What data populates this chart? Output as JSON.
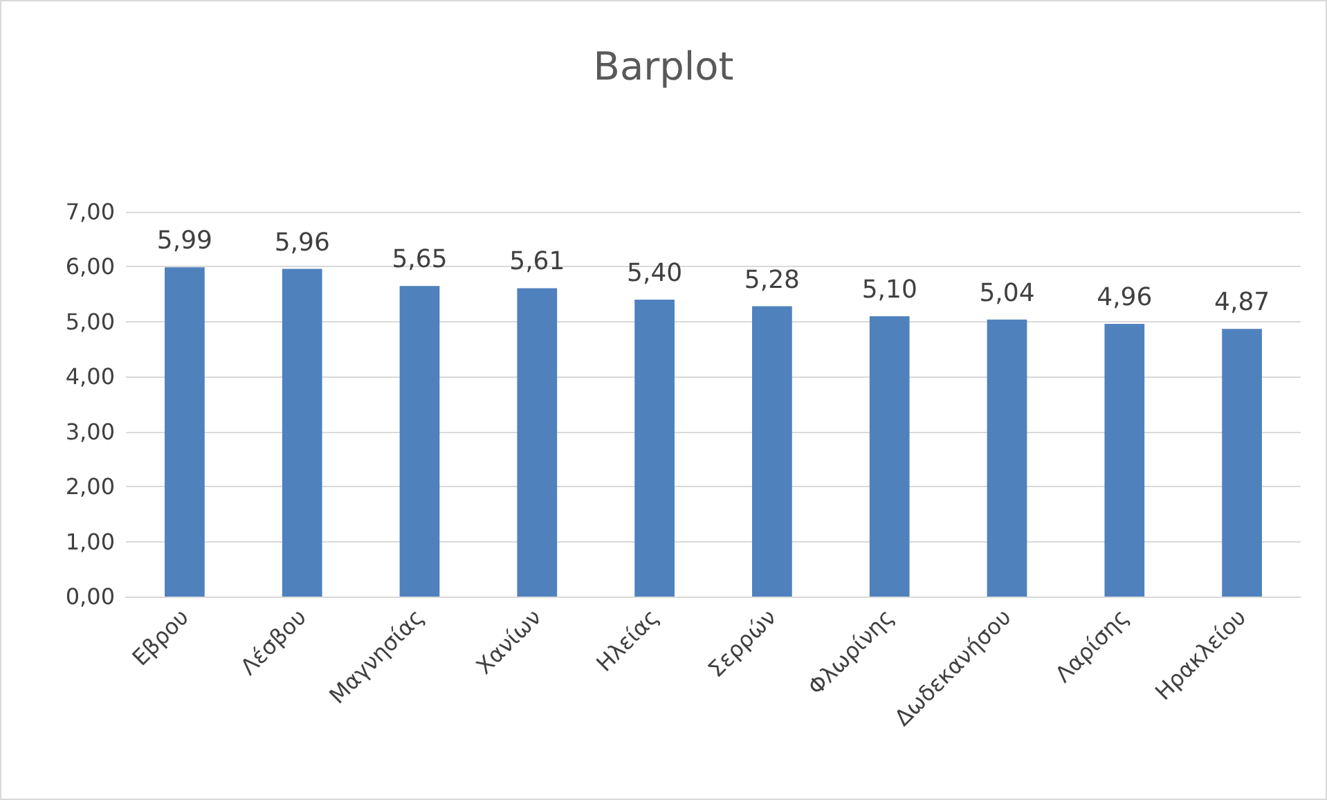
{
  "chart_data": {
    "type": "bar",
    "title": "Barplot",
    "categories": [
      "Εβρου",
      "Λέσβου",
      "Μαγνησίας",
      "Χανίων",
      "Ηλείας",
      "Σερρών",
      "Φλωρίνης",
      "Δωδεκανήσου",
      "Λαρίσης",
      "Ηρακλείου"
    ],
    "values": [
      5.99,
      5.96,
      5.65,
      5.61,
      5.4,
      5.28,
      5.1,
      5.04,
      4.96,
      4.87
    ],
    "value_labels": [
      "5,99",
      "5,96",
      "5,65",
      "5,61",
      "5,40",
      "5,28",
      "5,10",
      "5,04",
      "4,96",
      "4,87"
    ],
    "color": "#4f81bd",
    "ylim": [
      0,
      7
    ],
    "yticks": [
      {
        "value": 0,
        "label": "0,00"
      },
      {
        "value": 1,
        "label": "1,00"
      },
      {
        "value": 2,
        "label": "2,00"
      },
      {
        "value": 3,
        "label": "3,00"
      },
      {
        "value": 4,
        "label": "4,00"
      },
      {
        "value": 5,
        "label": "5,00"
      },
      {
        "value": 6,
        "label": "6,00"
      },
      {
        "value": 7,
        "label": "7,00"
      }
    ],
    "grid": "y"
  }
}
